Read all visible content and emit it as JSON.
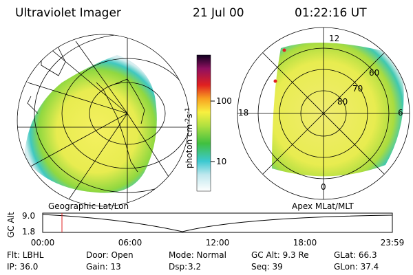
{
  "header": {
    "instrument": "Ultraviolet Imager",
    "date": "21 Jul 00",
    "time": "01:22:16 UT"
  },
  "colorbar": {
    "label": [
      "photon cm",
      "-2",
      "s",
      "-1"
    ],
    "ticks": [
      "100",
      "10"
    ]
  },
  "left_panel": {
    "label": "Geographic Lat/Lon"
  },
  "right_panel": {
    "label": "Apex MLat/MLT",
    "mlt_labels": [
      "12",
      "18",
      "6",
      "0"
    ],
    "lat_labels": [
      "60",
      "70",
      "80"
    ]
  },
  "altitude_plot": {
    "axis_label": "GC Alt",
    "levels": [
      "9.0",
      "1.8"
    ],
    "times": [
      "00:00",
      "06:00",
      "12:00",
      "18:00",
      "23:59"
    ]
  },
  "footer": {
    "rows": [
      [
        "Flt: LBHL",
        "Door: Open",
        "Mode: Normal",
        "GC Alt: 9.3 Re",
        "GLat: 66.3"
      ],
      [
        "IP: 36.0",
        "Gain: 13",
        "Dsp:",
        "3.2",
        "Seq: 39",
        "GLon: 37.4"
      ]
    ]
  }
}
